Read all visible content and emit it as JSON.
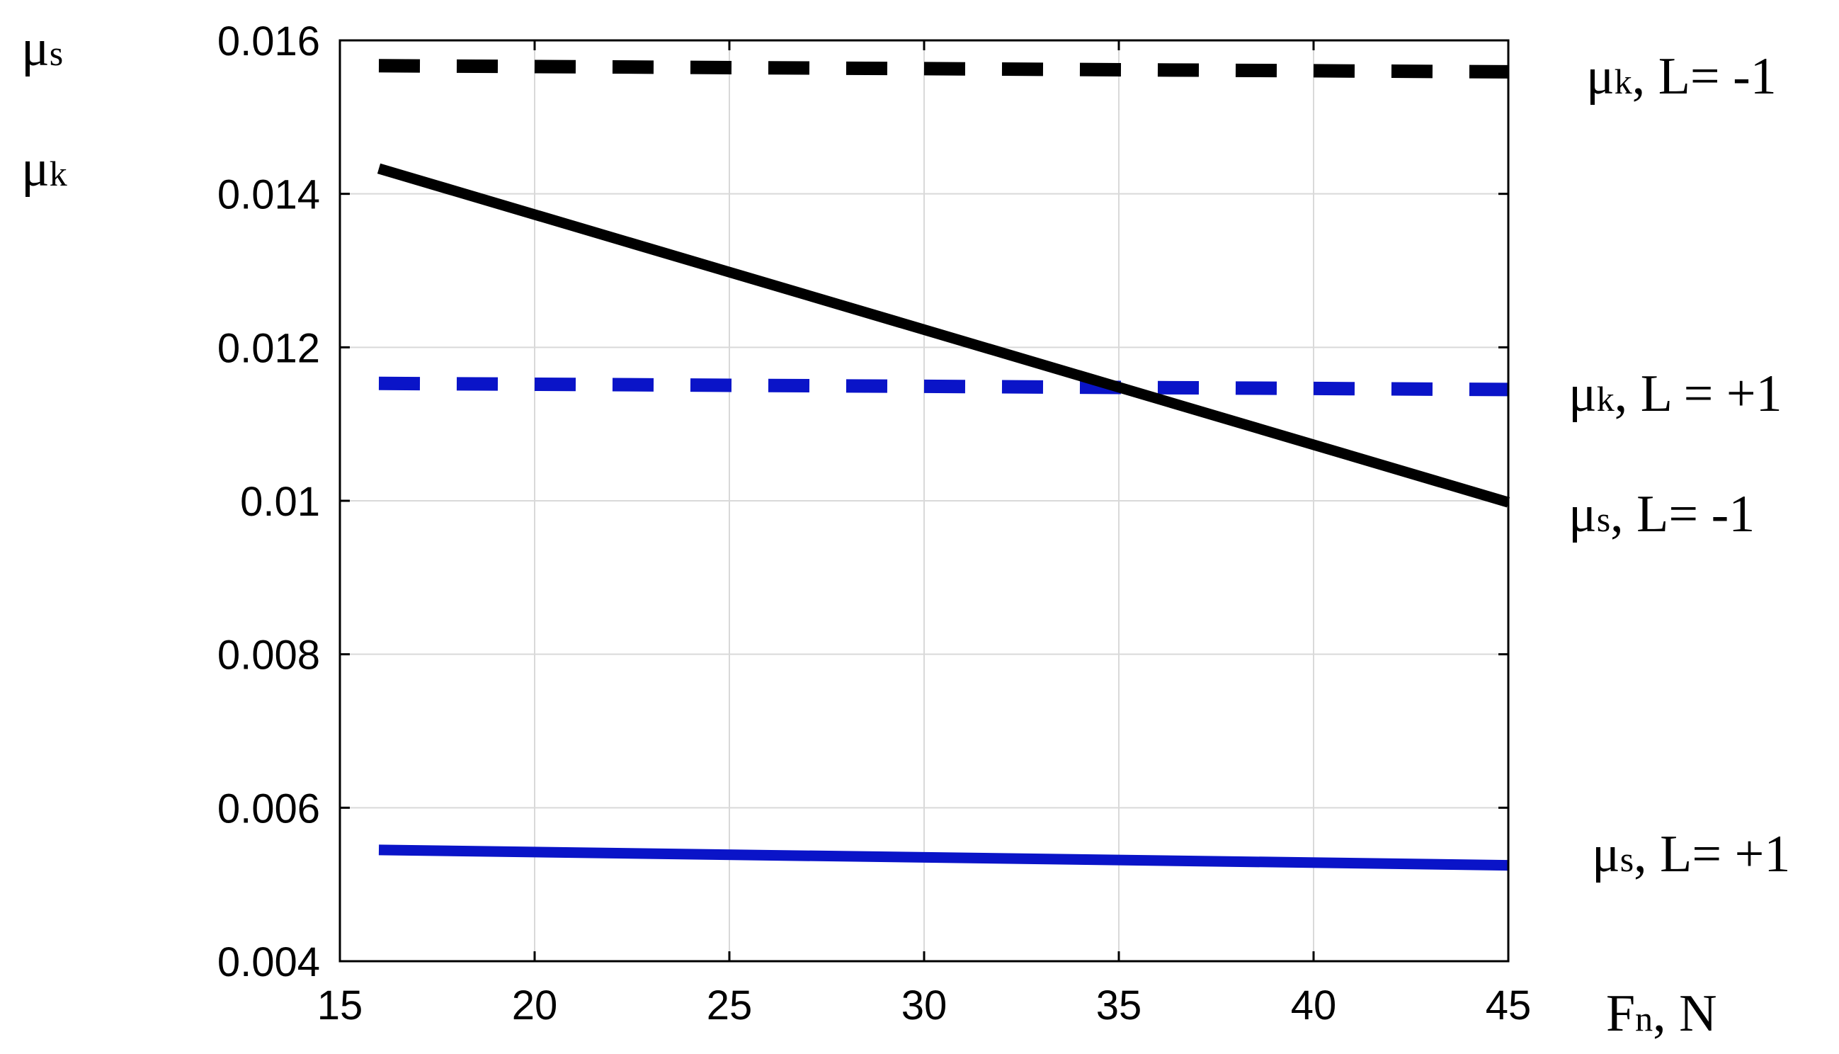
{
  "chart_data": {
    "type": "line",
    "xlabel": {
      "main": "F",
      "sub": "n",
      "rest": ", N"
    },
    "ylabel_lines": [
      {
        "main": "μ",
        "sub": "s"
      },
      {
        "main": "μ",
        "sub": "k"
      }
    ],
    "xlim": [
      15,
      45
    ],
    "ylim": [
      0.004,
      0.016
    ],
    "xticks": [
      15,
      20,
      25,
      30,
      35,
      40,
      45
    ],
    "xtick_labels": [
      "15",
      "20",
      "25",
      "30",
      "35",
      "40",
      "45"
    ],
    "yticks": [
      0.004,
      0.006,
      0.008,
      0.01,
      0.012,
      0.014,
      0.016
    ],
    "ytick_labels": [
      "0.004",
      "0.006",
      "0.008",
      "0.01",
      "0.012",
      "0.014",
      "0.016"
    ],
    "grid": true,
    "series": [
      {
        "name": "μk, L= -1",
        "label": {
          "main": "μ",
          "sub": "k",
          "rest": ", L= -1"
        },
        "color": "#000000",
        "style": "dashed",
        "x": [
          16,
          45
        ],
        "y": [
          0.01567,
          0.01559
        ]
      },
      {
        "name": "μk, L = +1",
        "label": {
          "main": "μ",
          "sub": "k",
          "rest": ", L = +1"
        },
        "color": "#0a14c8",
        "style": "dashed",
        "x": [
          16,
          45
        ],
        "y": [
          0.01153,
          0.01145
        ]
      },
      {
        "name": "μs, L= -1",
        "label": {
          "main": "μ",
          "sub": "s",
          "rest": ", L= -1"
        },
        "color": "#000000",
        "style": "solid",
        "x": [
          16,
          45
        ],
        "y": [
          0.01433,
          0.00998
        ]
      },
      {
        "name": "μs, L= +1",
        "label": {
          "main": "μ",
          "sub": "s",
          "rest": ", L= +1"
        },
        "color": "#0a14c8",
        "style": "solid",
        "x": [
          16,
          45
        ],
        "y": [
          0.00545,
          0.00525
        ]
      }
    ]
  }
}
